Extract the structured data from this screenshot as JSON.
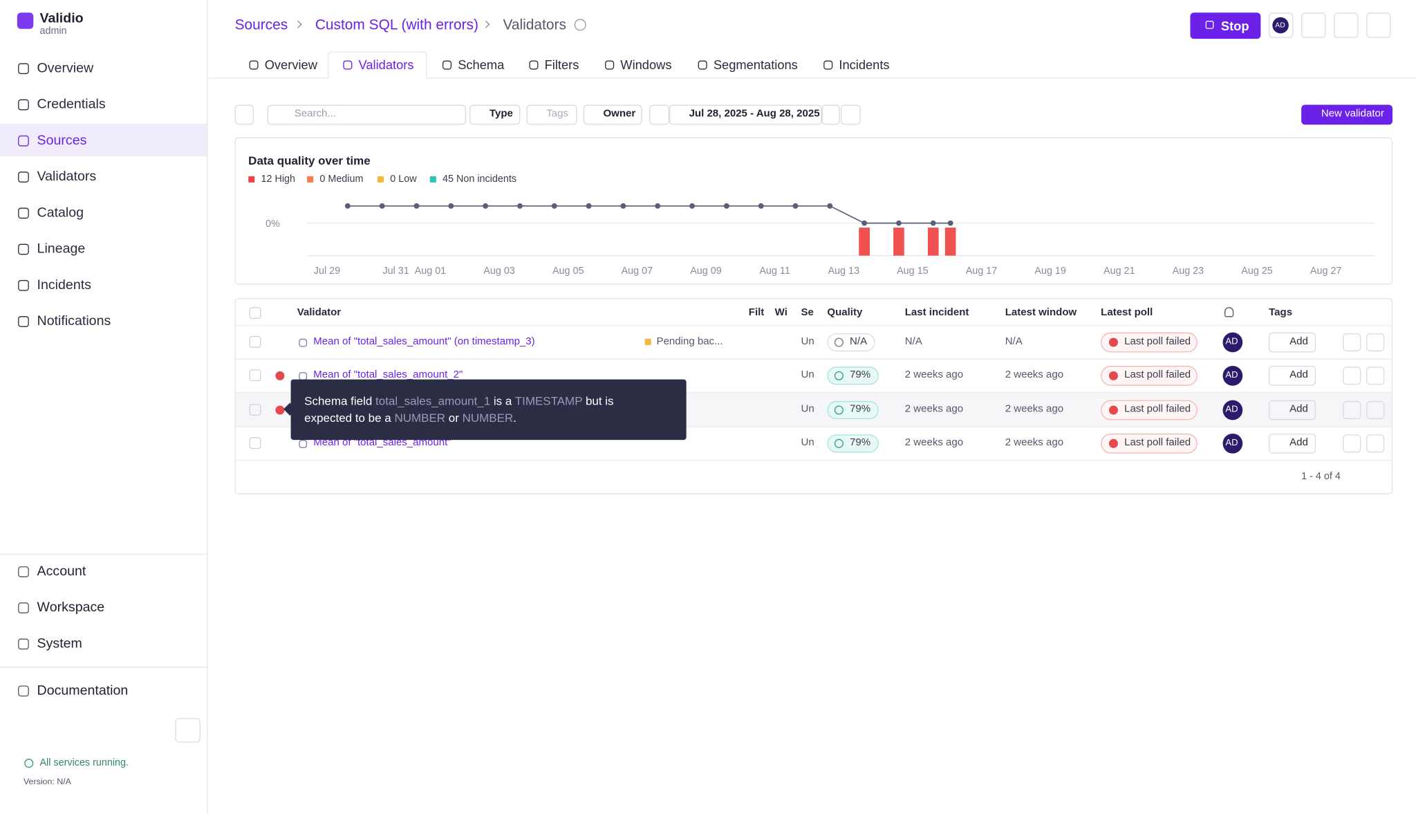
{
  "app": {
    "name": "Validio",
    "role": "admin"
  },
  "nav": [
    "Overview",
    "Credentials",
    "Sources",
    "Validators",
    "Catalog",
    "Lineage",
    "Incidents",
    "Notifications"
  ],
  "nav_bottom": [
    "Account",
    "Workspace",
    "System"
  ],
  "documentation": "Documentation",
  "status": "All services running.",
  "version": "Version: N/A",
  "breadcrumbs": [
    "Sources",
    "Custom SQL (with errors)",
    "Validators"
  ],
  "stop": "Stop",
  "user": "AD",
  "tabs": [
    "Overview",
    "Validators",
    "Schema",
    "Filters",
    "Windows",
    "Segmentations",
    "Incidents"
  ],
  "toolbar": {
    "search": "Search...",
    "type": "Type",
    "tags": "Tags",
    "owner": "Owner",
    "range": "Jul 28, 2025 - Aug 28, 2025",
    "new": "New validator"
  },
  "chart": {
    "type": "line",
    "title": "Data quality over time",
    "legend": [
      {
        "label": "12 High",
        "color": "#ef4444"
      },
      {
        "label": "0 Medium",
        "color": "#f97c4d"
      },
      {
        "label": "0 Low",
        "color": "#f5b83d"
      },
      {
        "label": "45 Non incidents",
        "color": "#2cc5b8"
      }
    ],
    "xlim": [
      -0.58,
      30.41
    ],
    "xticks": [
      {
        "value": 0,
        "label": "Jul 29"
      },
      {
        "value": 2,
        "label": "Jul 31"
      },
      {
        "value": 3,
        "label": "Aug 01"
      },
      {
        "value": 5,
        "label": "Aug 03"
      },
      {
        "value": 7,
        "label": "Aug 05"
      },
      {
        "value": 9,
        "label": "Aug 07"
      },
      {
        "value": 11,
        "label": "Aug 09"
      },
      {
        "value": 13,
        "label": "Aug 11"
      },
      {
        "value": 15,
        "label": "Aug 13"
      },
      {
        "value": 17,
        "label": "Aug 15"
      },
      {
        "value": 19,
        "label": "Aug 17"
      },
      {
        "value": 21,
        "label": "Aug 19"
      },
      {
        "value": 23,
        "label": "Aug 21"
      },
      {
        "value": 25,
        "label": "Aug 23"
      },
      {
        "value": 27,
        "label": "Aug 25"
      },
      {
        "value": 29,
        "label": "Aug 27"
      }
    ],
    "ylim": [
      -100,
      100
    ],
    "yticks": [
      {
        "value": 0,
        "label": "0%"
      }
    ],
    "grid": true,
    "y2lim": [
      0,
      3
    ],
    "line": {
      "color": "#5b5e78",
      "x": [
        0.6,
        1.6,
        2.6,
        3.6,
        4.6,
        5.6,
        6.6,
        7.6,
        8.6,
        9.6,
        10.6,
        11.6,
        12.6,
        13.6,
        14.6,
        15.6,
        16.6,
        17.6,
        18.1
      ],
      "values": [
        50,
        50,
        50,
        50,
        50,
        50,
        50,
        50,
        50,
        50,
        50,
        50,
        50,
        50,
        50,
        0,
        0,
        0,
        0
      ]
    },
    "bars": {
      "color": "#f05252",
      "axis": "y2",
      "x": [
        15.6,
        16.6,
        17.6,
        18.1
      ],
      "values": [
        3,
        3,
        3,
        3
      ]
    }
  },
  "table": {
    "columns": [
      "Validator",
      "Filt",
      "Wi",
      "Se",
      "Quality",
      "Last incident",
      "Latest window",
      "Latest poll",
      "Tags"
    ],
    "rows": [
      {
        "error": false,
        "name": "Mean of \"total_sales_amount\" (on timestamp_3)",
        "status": "Pending bac...",
        "segment": "Un",
        "quality": "N/A",
        "last_incident": "N/A",
        "latest_window": "N/A",
        "latest_poll": "Last poll failed",
        "owner": "AD",
        "tags": "Add"
      },
      {
        "error": true,
        "name": "Mean of \"total_sales_amount_2\"",
        "segment": "Un",
        "quality": "79%",
        "last_incident": "2 weeks ago",
        "latest_window": "2 weeks ago",
        "latest_poll": "Last poll failed",
        "owner": "AD",
        "tags": "Add"
      },
      {
        "error": true,
        "name": null,
        "segment": "Un",
        "quality": "79%",
        "last_incident": "2 weeks ago",
        "latest_window": "2 weeks ago",
        "latest_poll": "Last poll failed",
        "owner": "AD",
        "tags": "Add"
      },
      {
        "error": false,
        "name": "Mean of \"total_sales_amount\"",
        "segment": "Un",
        "quality": "79%",
        "last_incident": "2 weeks ago",
        "latest_window": "2 weeks ago",
        "latest_poll": "Last poll failed",
        "owner": "AD",
        "tags": "Add"
      }
    ],
    "pagination": "1 - 4 of 4"
  },
  "tooltip": {
    "lines": [
      [
        {
          "text": "Schema field "
        },
        {
          "text": "total_sales_amount_1",
          "code": true
        },
        {
          "text": " is a "
        },
        {
          "text": "TIMESTAMP",
          "code": true
        },
        {
          "text": " but is"
        }
      ],
      [
        {
          "text": "expected to be a "
        },
        {
          "text": "NUMBER",
          "code": true
        },
        {
          "text": " or "
        },
        {
          "text": "NUMBER",
          "code": true
        },
        {
          "text": "."
        }
      ]
    ]
  }
}
